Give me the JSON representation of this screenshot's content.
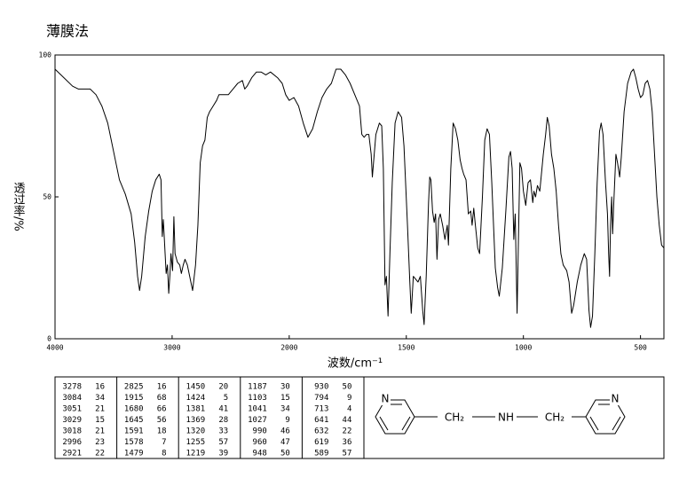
{
  "chart_data": {
    "type": "line",
    "title": "薄膜法",
    "x_label": "波数/cm⁻¹",
    "y_label": "透过率/%",
    "color": "#000000",
    "xlim": [
      4000,
      400
    ],
    "xticks": [
      4000,
      3000,
      2000,
      1500,
      1000,
      500
    ],
    "ylim": [
      0,
      100
    ],
    "yticks": [
      0,
      50,
      100
    ],
    "x": [
      4000,
      3950,
      3850,
      3800,
      3700,
      3650,
      3600,
      3550,
      3500,
      3450,
      3400,
      3350,
      3320,
      3295,
      3278,
      3260,
      3230,
      3200,
      3170,
      3140,
      3110,
      3095,
      3084,
      3075,
      3051,
      3040,
      3029,
      3018,
      3010,
      2996,
      2985,
      2975,
      2955,
      2935,
      2921,
      2905,
      2890,
      2870,
      2850,
      2825,
      2800,
      2780,
      2760,
      2740,
      2720,
      2700,
      2680,
      2650,
      2620,
      2600,
      2560,
      2520,
      2480,
      2440,
      2400,
      2380,
      2360,
      2320,
      2280,
      2240,
      2200,
      2160,
      2100,
      2060,
      2030,
      2000,
      1980,
      1960,
      1940,
      1920,
      1900,
      1880,
      1860,
      1840,
      1820,
      1800,
      1780,
      1760,
      1740,
      1720,
      1700,
      1690,
      1680,
      1670,
      1660,
      1650,
      1645,
      1640,
      1630,
      1615,
      1605,
      1598,
      1591,
      1585,
      1578,
      1570,
      1560,
      1548,
      1535,
      1520,
      1510,
      1495,
      1485,
      1479,
      1470,
      1460,
      1450,
      1440,
      1430,
      1424,
      1415,
      1405,
      1400,
      1395,
      1388,
      1381,
      1375,
      1369,
      1362,
      1355,
      1345,
      1335,
      1325,
      1320,
      1310,
      1300,
      1290,
      1280,
      1270,
      1262,
      1255,
      1245,
      1235,
      1225,
      1219,
      1212,
      1205,
      1195,
      1187,
      1175,
      1165,
      1155,
      1145,
      1135,
      1120,
      1110,
      1103,
      1090,
      1075,
      1062,
      1055,
      1048,
      1041,
      1035,
      1027,
      1020,
      1015,
      1008,
      1000,
      990,
      980,
      970,
      960,
      955,
      948,
      940,
      930,
      915,
      905,
      898,
      890,
      880,
      870,
      860,
      850,
      840,
      830,
      815,
      805,
      794,
      785,
      770,
      755,
      740,
      730,
      720,
      713,
      705,
      695,
      685,
      675,
      668,
      660,
      650,
      641,
      636,
      632,
      628,
      623,
      619,
      614,
      605,
      598,
      589,
      582,
      570,
      555,
      540,
      530,
      520,
      510,
      500,
      490,
      480,
      470,
      460,
      450,
      440,
      430,
      420,
      410,
      400
    ],
    "values": [
      95,
      93,
      89,
      88,
      88,
      86,
      82,
      76,
      66,
      56,
      51,
      44,
      34,
      22,
      17,
      22,
      36,
      45,
      52,
      56,
      58,
      56,
      36,
      42,
      23,
      26,
      16,
      23,
      30,
      24,
      43,
      30,
      27,
      26,
      23,
      26,
      28,
      26,
      22,
      17,
      26,
      40,
      62,
      68,
      70,
      78,
      80,
      82,
      84,
      86,
      86,
      86,
      88,
      90,
      91,
      88,
      89,
      92,
      94,
      94,
      93,
      94,
      92,
      90,
      86,
      84,
      85,
      82,
      76,
      71,
      74,
      80,
      85,
      88,
      90,
      95,
      95,
      93,
      90,
      86,
      82,
      72,
      71,
      72,
      72,
      65,
      57,
      62,
      72,
      76,
      75,
      60,
      19,
      22,
      8,
      30,
      55,
      76,
      80,
      78,
      68,
      40,
      20,
      9,
      22,
      21,
      20,
      22,
      10,
      5,
      22,
      48,
      57,
      56,
      45,
      41,
      44,
      28,
      42,
      44,
      40,
      35,
      40,
      33,
      60,
      76,
      74,
      70,
      63,
      60,
      58,
      56,
      44,
      45,
      40,
      46,
      40,
      32,
      30,
      50,
      70,
      74,
      72,
      55,
      25,
      18,
      15,
      25,
      45,
      64,
      66,
      60,
      35,
      44,
      9,
      40,
      62,
      60,
      52,
      47,
      55,
      56,
      48,
      52,
      50,
      54,
      52,
      65,
      72,
      78,
      75,
      65,
      60,
      52,
      40,
      30,
      26,
      24,
      20,
      9,
      12,
      20,
      26,
      30,
      28,
      10,
      4,
      8,
      30,
      55,
      73,
      76,
      72,
      56,
      44,
      30,
      22,
      40,
      50,
      37,
      48,
      65,
      62,
      57,
      64,
      80,
      90,
      94,
      95,
      92,
      88,
      85,
      86,
      90,
      91,
      88,
      80,
      65,
      50,
      40,
      33,
      32
    ]
  },
  "peak_table": {
    "columns": [
      [
        [
          "3278",
          "16"
        ],
        [
          "3084",
          "34"
        ],
        [
          "3051",
          "21"
        ],
        [
          "3029",
          "15"
        ],
        [
          "3018",
          "21"
        ],
        [
          "2996",
          "23"
        ],
        [
          "2921",
          "22"
        ]
      ],
      [
        [
          "2825",
          "16"
        ],
        [
          "1915",
          "68"
        ],
        [
          "1680",
          "66"
        ],
        [
          "1645",
          "56"
        ],
        [
          "1591",
          "18"
        ],
        [
          "1578",
          "7"
        ],
        [
          "1479",
          "8"
        ]
      ],
      [
        [
          "1450",
          "20"
        ],
        [
          "1424",
          "5"
        ],
        [
          "1381",
          "41"
        ],
        [
          "1369",
          "28"
        ],
        [
          "1320",
          "33"
        ],
        [
          "1255",
          "57"
        ],
        [
          "1219",
          "39"
        ]
      ],
      [
        [
          "1187",
          "30"
        ],
        [
          "1103",
          "15"
        ],
        [
          "1041",
          "34"
        ],
        [
          "1027",
          "9"
        ],
        [
          "990",
          "46"
        ],
        [
          "960",
          "47"
        ],
        [
          "948",
          "50"
        ]
      ],
      [
        [
          "930",
          "50"
        ],
        [
          "794",
          "9"
        ],
        [
          "713",
          "4"
        ],
        [
          "641",
          "44"
        ],
        [
          "632",
          "22"
        ],
        [
          "619",
          "36"
        ],
        [
          "589",
          "57"
        ]
      ]
    ]
  },
  "structure": {
    "ring_n_left": "N",
    "ch2_left": "CH₂",
    "nh": "NH",
    "ch2_right": "CH₂",
    "ring_n_right": "N"
  }
}
